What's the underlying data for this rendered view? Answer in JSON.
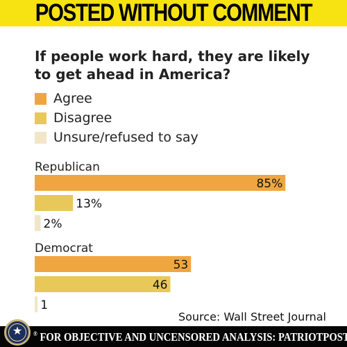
{
  "banner": {
    "title": "POSTED WITHOUT COMMENT"
  },
  "chart_data": {
    "type": "bar",
    "orientation": "horizontal",
    "title": "If people work hard, they are likely to get ahead in America?",
    "categories": [
      "Republican",
      "Democrat"
    ],
    "series": [
      {
        "name": "Agree",
        "color": "#f0a640",
        "values": [
          85,
          53
        ],
        "labels": [
          "85%",
          "53"
        ]
      },
      {
        "name": "Disagree",
        "color": "#e9c85a",
        "values": [
          13,
          46
        ],
        "labels": [
          "13%",
          "46"
        ]
      },
      {
        "name": "Unsure/refused to say",
        "color": "#f2e6c8",
        "values": [
          2,
          1
        ],
        "labels": [
          "2%",
          "1"
        ]
      }
    ],
    "xlim": [
      0,
      100
    ],
    "grid": false,
    "legend_position": "top-left",
    "source": "Source: Wall Street Journal"
  },
  "footer": {
    "text": "FOR OBJECTIVE AND UNCENSORED ANALYSIS: PATRIOTPOST.US",
    "trademark": "®",
    "seal_icon": "patriot-post-seal-icon"
  }
}
